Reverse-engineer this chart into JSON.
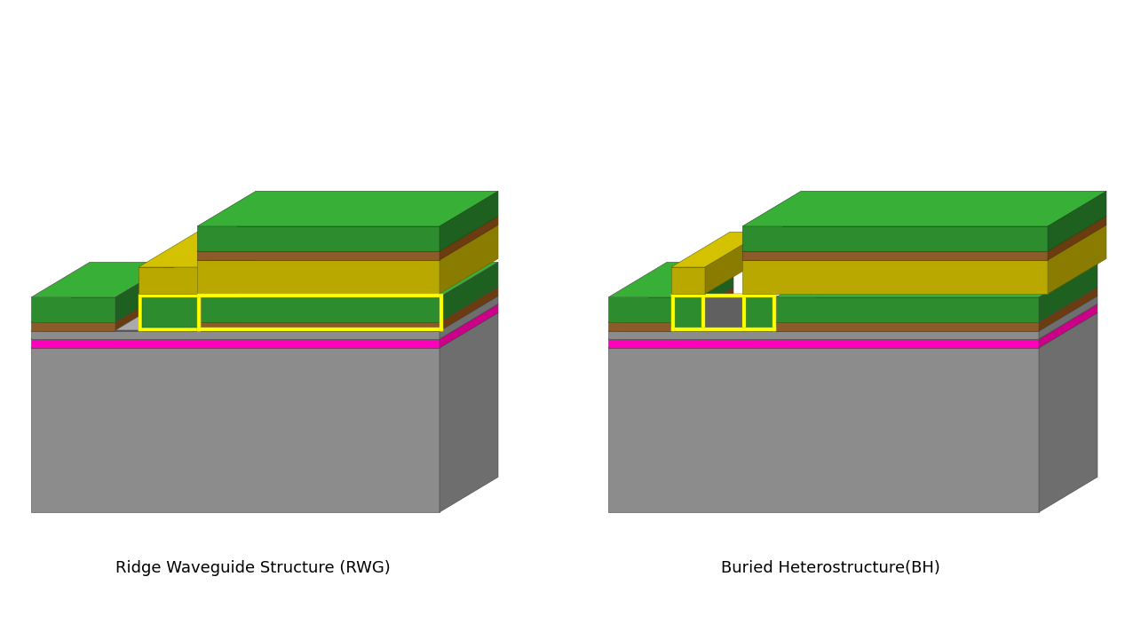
{
  "title_left": "Ridge Waveguide Structure (RWG)",
  "title_right": "Buried Heterostructure(BH)",
  "title_fontsize": 13,
  "bg_color": "#ffffff",
  "colors": {
    "gray_face": "#8c8c8c",
    "gray_top": "#b0b0b0",
    "gray_side": "#6e6e6e",
    "gray_top2": "#c0c0c0",
    "green_face": "#2d8c2d",
    "green_top": "#38b038",
    "green_side": "#1e6020",
    "brown_face": "#8b5c2a",
    "brown_top": "#a87040",
    "brown_side": "#6b3c10",
    "magenta_face": "#ff00bb",
    "magenta_top": "#ff55cc",
    "magenta_side": "#cc0088",
    "yellow_face": "#b8a800",
    "yellow_top": "#d4c200",
    "yellow_side": "#8a7c00",
    "yellow_bright": "#ffff00",
    "darkgray_face": "#606060",
    "darkgray_top": "#808080",
    "darkgray_side": "#404040"
  }
}
